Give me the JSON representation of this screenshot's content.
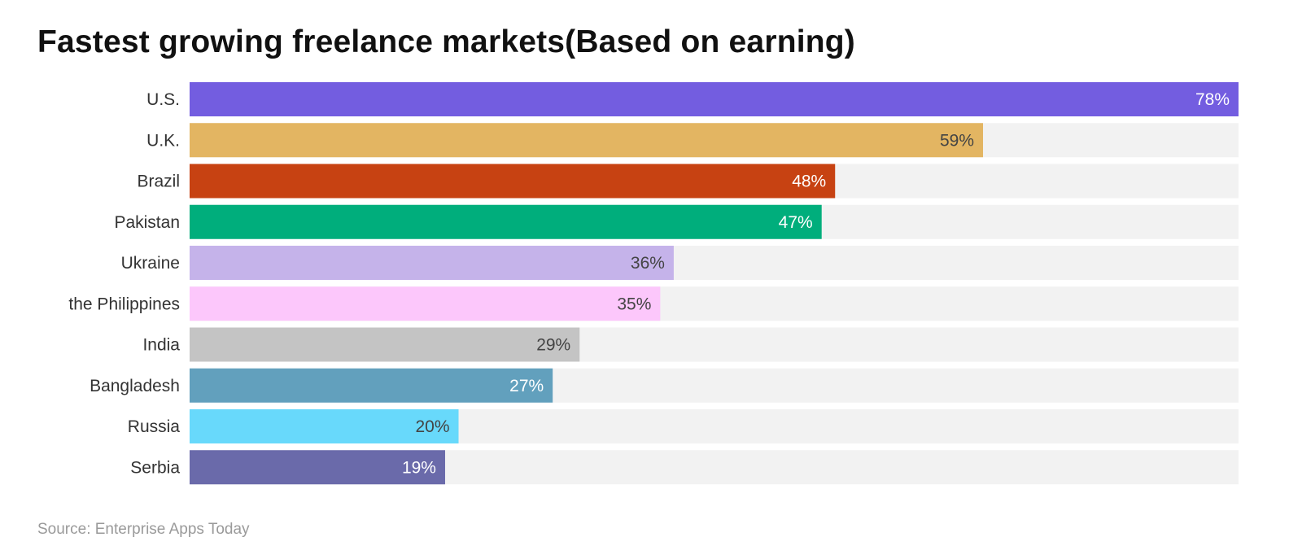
{
  "chart_data": {
    "type": "bar",
    "orientation": "horizontal",
    "title": "Fastest growing freelance markets(Based on earning)",
    "xlabel": "",
    "ylabel": "",
    "xlim": [
      0,
      78
    ],
    "grid": false,
    "categories": [
      "U.S.",
      "U.K.",
      "Brazil",
      "Pakistan",
      "Ukraine",
      "the Philippines",
      "India",
      "Bangladesh",
      "Russia",
      "Serbia"
    ],
    "values": [
      78,
      59,
      48,
      47,
      36,
      35,
      29,
      27,
      20,
      19
    ],
    "data_labels": [
      "78%",
      "59%",
      "48%",
      "47%",
      "36%",
      "35%",
      "29%",
      "27%",
      "20%",
      "19%"
    ],
    "colors": [
      "#735de0",
      "#e3b562",
      "#c74212",
      "#00ae7c",
      "#c5b3ea",
      "#fcc7fb",
      "#c4c4c4",
      "#62a0bd",
      "#68d9fb",
      "#6a6aaa"
    ],
    "label_colors": [
      "#ffffff",
      "#444444",
      "#ffffff",
      "#ffffff",
      "#444444",
      "#444444",
      "#444444",
      "#ffffff",
      "#444444",
      "#ffffff"
    ],
    "track_color": "#f2f2f2",
    "source": "Source: Enterprise Apps Today"
  }
}
